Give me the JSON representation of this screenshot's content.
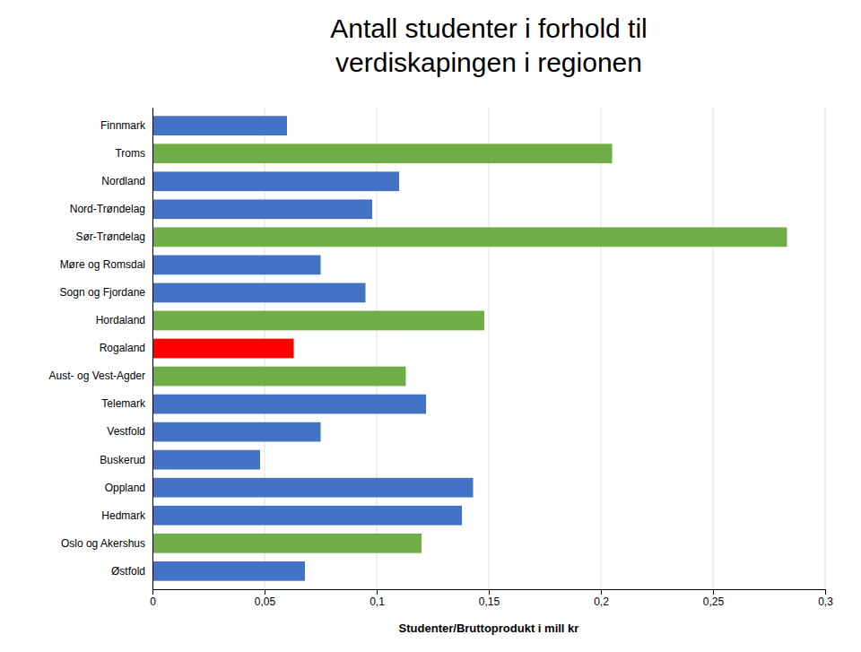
{
  "chart_data": {
    "type": "bar",
    "orientation": "horizontal",
    "title": [
      "Antall studenter i forhold til",
      "verdiskapingen i regionen"
    ],
    "xlabel": "Studenter/Bruttoprodukt i mill kr",
    "categories": [
      "Finnmark",
      "Troms",
      "Nordland",
      "Nord-Trøndelag",
      "Sør-Trøndelag",
      "Møre og Romsdal",
      "Sogn og Fjordane",
      "Hordaland",
      "Rogaland",
      "Aust- og Vest-Agder",
      "Telemark",
      "Vestfold",
      "Buskerud",
      "Oppland",
      "Hedmark",
      "Oslo og Akershus",
      "Østfold"
    ],
    "values": [
      0.06,
      0.205,
      0.11,
      0.098,
      0.283,
      0.075,
      0.095,
      0.148,
      0.063,
      0.113,
      0.122,
      0.075,
      0.048,
      0.143,
      0.138,
      0.12,
      0.068
    ],
    "colors": [
      "#4472C4",
      "#70AD47",
      "#4472C4",
      "#4472C4",
      "#70AD47",
      "#4472C4",
      "#4472C4",
      "#70AD47",
      "#FF0000",
      "#70AD47",
      "#4472C4",
      "#4472C4",
      "#4472C4",
      "#4472C4",
      "#4472C4",
      "#70AD47",
      "#4472C4"
    ],
    "xlim": [
      0,
      0.3
    ],
    "xticks": [
      0,
      {
        "value": 0.05,
        "label": "0,05"
      },
      {
        "value": 0.1,
        "label": "0,1"
      },
      {
        "value": 0.15,
        "label": "0,15"
      },
      {
        "value": 0.2,
        "label": "0,2"
      },
      {
        "value": 0.25,
        "label": "0,25"
      },
      {
        "value": 0.3,
        "label": "0,3"
      }
    ],
    "grid": true
  }
}
